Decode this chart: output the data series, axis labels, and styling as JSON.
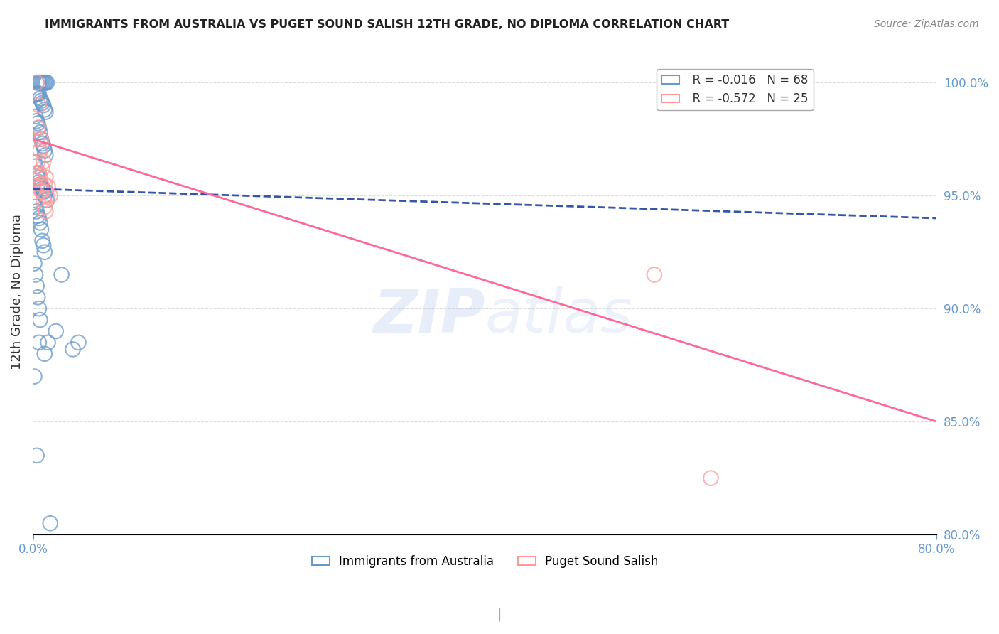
{
  "title": "IMMIGRANTS FROM AUSTRALIA VS PUGET SOUND SALISH 12TH GRADE, NO DIPLOMA CORRELATION CHART",
  "source": "Source: ZipAtlas.com",
  "ylabel": "12th Grade, No Diploma",
  "xmin": 0.0,
  "xmax": 80.0,
  "ymin": 80.0,
  "ymax": 101.5,
  "legend_blue_r": "R = -0.016",
  "legend_blue_n": "N = 68",
  "legend_pink_r": "R = -0.572",
  "legend_pink_n": "N = 25",
  "blue_color": "#6699CC",
  "pink_color": "#FF9999",
  "blue_line_color": "#3355AA",
  "pink_line_color": "#FF6699",
  "axis_label_color": "#6699CC",
  "blue_scatter_x": [
    0.3,
    0.5,
    0.5,
    0.6,
    0.7,
    0.8,
    0.9,
    1.0,
    1.1,
    1.2,
    0.2,
    0.3,
    0.4,
    0.5,
    0.6,
    0.7,
    0.8,
    0.9,
    1.0,
    1.1,
    0.2,
    0.3,
    0.4,
    0.5,
    0.6,
    0.7,
    0.8,
    0.9,
    1.0,
    1.1,
    0.1,
    0.2,
    0.3,
    0.4,
    0.5,
    0.6,
    0.7,
    0.8,
    0.9,
    1.0,
    0.1,
    0.2,
    0.3,
    0.4,
    0.5,
    0.6,
    0.7,
    0.8,
    0.9,
    1.0,
    0.1,
    0.2,
    0.3,
    0.4,
    0.5,
    0.6,
    1.1,
    1.2,
    1.3,
    2.5,
    0.1,
    0.3,
    0.5,
    1.0,
    2.0,
    3.5,
    4.0,
    1.5
  ],
  "blue_scatter_y": [
    100.0,
    100.0,
    100.0,
    100.0,
    100.0,
    100.0,
    100.0,
    100.0,
    100.0,
    100.0,
    99.5,
    99.5,
    99.5,
    99.5,
    99.3,
    99.2,
    99.1,
    99.0,
    98.8,
    98.7,
    98.5,
    98.3,
    98.2,
    98.0,
    97.8,
    97.5,
    97.3,
    97.2,
    97.0,
    96.8,
    96.5,
    96.3,
    96.0,
    95.8,
    95.6,
    95.5,
    95.4,
    95.3,
    95.2,
    95.0,
    94.8,
    94.5,
    94.3,
    94.1,
    94.0,
    93.8,
    93.5,
    93.0,
    92.8,
    92.5,
    92.0,
    91.5,
    91.0,
    90.5,
    90.0,
    89.5,
    95.2,
    94.8,
    88.5,
    91.5,
    87.0,
    83.5,
    88.5,
    88.0,
    89.0,
    88.2,
    88.5,
    80.5
  ],
  "pink_scatter_x": [
    0.3,
    0.5,
    0.7,
    0.9,
    1.1,
    1.3,
    1.5,
    0.4,
    0.6,
    0.8,
    1.0,
    1.2,
    0.3,
    0.5,
    0.7,
    0.9,
    1.1,
    0.4,
    0.6,
    0.8,
    1.0,
    0.5,
    0.7,
    55.0,
    60.0
  ],
  "pink_scatter_y": [
    100.0,
    99.0,
    97.5,
    96.5,
    95.8,
    95.4,
    95.0,
    98.0,
    97.0,
    96.2,
    95.5,
    95.0,
    97.5,
    96.0,
    95.2,
    94.8,
    94.3,
    96.5,
    95.8,
    95.2,
    94.5,
    96.0,
    95.5,
    91.5,
    82.5
  ],
  "blue_trend_x": [
    0.0,
    80.0
  ],
  "blue_trend_y": [
    95.3,
    94.0
  ],
  "pink_trend_x": [
    0.0,
    80.0
  ],
  "pink_trend_y": [
    97.5,
    85.0
  ],
  "gridline_color": "#DDDDDD",
  "bottom_legend_labels": [
    "Immigrants from Australia",
    "Puget Sound Salish"
  ]
}
